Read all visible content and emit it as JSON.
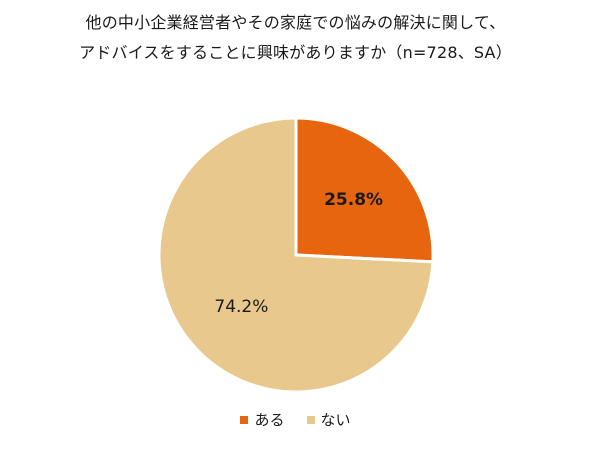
{
  "chart_data": {
    "type": "pie",
    "title_lines": [
      "他の中小企業経営者やその家庭での悩みの解決に関して、",
      "アドバイスをすることに興味がありますか（n=728、SA）"
    ],
    "categories": [
      "ある",
      "ない"
    ],
    "values": [
      25.8,
      74.2
    ],
    "value_labels": [
      "25.8%",
      "74.2%"
    ],
    "colors": [
      "#E8650F",
      "#E8C88C"
    ],
    "legend_position": "bottom",
    "start_angle": "12 o'clock",
    "direction": "clockwise"
  }
}
